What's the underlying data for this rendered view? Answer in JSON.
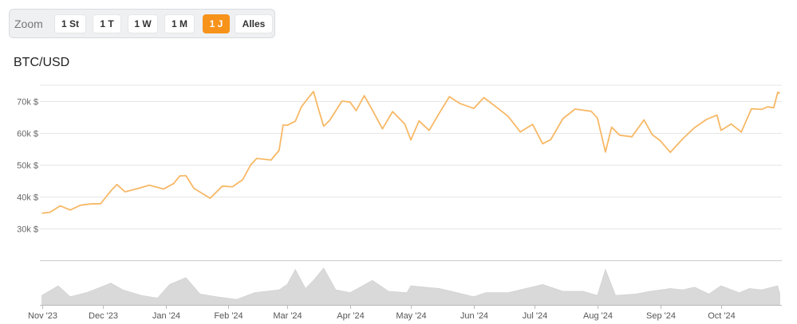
{
  "zoom": {
    "label": "Zoom",
    "buttons": [
      "1 St",
      "1 T",
      "1 W",
      "1 M",
      "1 J",
      "Alles"
    ],
    "active": "1 J"
  },
  "title": "BTC/USD",
  "colors": {
    "line": "#f7b866",
    "volume": "#d9d9d9",
    "grid": "#e6e6e6",
    "accent": "#f7931a"
  },
  "chart_data": {
    "type": "line",
    "title": "BTC/USD",
    "ylim": [
      20000,
      75000
    ],
    "y_ticks": [
      {
        "value": 30000,
        "label": "30k $"
      },
      {
        "value": 40000,
        "label": "40k $"
      },
      {
        "value": 50000,
        "label": "50k $"
      },
      {
        "value": 60000,
        "label": "60k $"
      },
      {
        "value": 70000,
        "label": "70k $"
      }
    ],
    "x_ticks": [
      {
        "date": "2023-11-01",
        "label": "Nov '23"
      },
      {
        "date": "2023-12-01",
        "label": "Dec '23"
      },
      {
        "date": "2024-01-01",
        "label": "Jan '24"
      },
      {
        "date": "2024-02-01",
        "label": "Feb '24"
      },
      {
        "date": "2024-03-01",
        "label": "Mar '24"
      },
      {
        "date": "2024-04-01",
        "label": "Apr '24"
      },
      {
        "date": "2024-05-01",
        "label": "May '24"
      },
      {
        "date": "2024-06-01",
        "label": "Jun '24"
      },
      {
        "date": "2024-07-01",
        "label": "Jul '24"
      },
      {
        "date": "2024-08-01",
        "label": "Aug '24"
      },
      {
        "date": "2024-09-01",
        "label": "Sep '24"
      },
      {
        "date": "2024-10-01",
        "label": "Oct '24"
      }
    ],
    "grid": true,
    "price": [
      [
        "2023-11-01",
        34800
      ],
      [
        "2023-11-05",
        35100
      ],
      [
        "2023-11-10",
        37100
      ],
      [
        "2023-11-15",
        35800
      ],
      [
        "2023-11-20",
        37300
      ],
      [
        "2023-11-25",
        37700
      ],
      [
        "2023-11-30",
        37800
      ],
      [
        "2023-12-05",
        41800
      ],
      [
        "2023-12-08",
        43800
      ],
      [
        "2023-12-12",
        41500
      ],
      [
        "2023-12-18",
        42500
      ],
      [
        "2023-12-24",
        43600
      ],
      [
        "2023-12-31",
        42400
      ],
      [
        "2024-01-05",
        44100
      ],
      [
        "2024-01-08",
        46500
      ],
      [
        "2024-01-11",
        46600
      ],
      [
        "2024-01-15",
        42600
      ],
      [
        "2024-01-23",
        39500
      ],
      [
        "2024-01-29",
        43300
      ],
      [
        "2024-02-03",
        43100
      ],
      [
        "2024-02-08",
        45300
      ],
      [
        "2024-02-12",
        50000
      ],
      [
        "2024-02-15",
        52000
      ],
      [
        "2024-02-22",
        51500
      ],
      [
        "2024-02-26",
        54500
      ],
      [
        "2024-02-28",
        62500
      ],
      [
        "2024-03-01",
        62400
      ],
      [
        "2024-03-05",
        63700
      ],
      [
        "2024-03-08",
        68200
      ],
      [
        "2024-03-12",
        71500
      ],
      [
        "2024-03-14",
        73000
      ],
      [
        "2024-03-16",
        68400
      ],
      [
        "2024-03-19",
        62100
      ],
      [
        "2024-03-22",
        64000
      ],
      [
        "2024-03-25",
        67000
      ],
      [
        "2024-03-28",
        70000
      ],
      [
        "2024-04-01",
        69700
      ],
      [
        "2024-04-04",
        67000
      ],
      [
        "2024-04-08",
        71700
      ],
      [
        "2024-04-12",
        67200
      ],
      [
        "2024-04-17",
        61300
      ],
      [
        "2024-04-22",
        66700
      ],
      [
        "2024-04-28",
        62800
      ],
      [
        "2024-05-01",
        57800
      ],
      [
        "2024-05-05",
        63800
      ],
      [
        "2024-05-10",
        60800
      ],
      [
        "2024-05-15",
        66200
      ],
      [
        "2024-05-20",
        71400
      ],
      [
        "2024-05-25",
        69300
      ],
      [
        "2024-06-01",
        67700
      ],
      [
        "2024-06-06",
        71100
      ],
      [
        "2024-06-12",
        68200
      ],
      [
        "2024-06-18",
        65200
      ],
      [
        "2024-06-24",
        60300
      ],
      [
        "2024-06-30",
        62700
      ],
      [
        "2024-07-05",
        56600
      ],
      [
        "2024-07-09",
        57900
      ],
      [
        "2024-07-15",
        64500
      ],
      [
        "2024-07-21",
        67500
      ],
      [
        "2024-07-29",
        66800
      ],
      [
        "2024-08-01",
        64700
      ],
      [
        "2024-08-05",
        54000
      ],
      [
        "2024-08-08",
        61800
      ],
      [
        "2024-08-12",
        59300
      ],
      [
        "2024-08-18",
        58800
      ],
      [
        "2024-08-24",
        64100
      ],
      [
        "2024-08-28",
        59500
      ],
      [
        "2024-09-01",
        57600
      ],
      [
        "2024-09-06",
        53900
      ],
      [
        "2024-09-12",
        58100
      ],
      [
        "2024-09-18",
        61700
      ],
      [
        "2024-09-24",
        64300
      ],
      [
        "2024-09-29",
        65600
      ],
      [
        "2024-10-01",
        60800
      ],
      [
        "2024-10-06",
        62800
      ],
      [
        "2024-10-11",
        60300
      ],
      [
        "2024-10-16",
        67600
      ],
      [
        "2024-10-21",
        67400
      ],
      [
        "2024-10-24",
        68200
      ],
      [
        "2024-10-27",
        67900
      ],
      [
        "2024-10-29",
        72800
      ],
      [
        "2024-10-30",
        72400
      ]
    ],
    "volume": [
      [
        "2023-11-01",
        0.35
      ],
      [
        "2023-11-09",
        0.7
      ],
      [
        "2023-11-15",
        0.3
      ],
      [
        "2023-11-23",
        0.45
      ],
      [
        "2023-12-05",
        0.8
      ],
      [
        "2023-12-11",
        0.55
      ],
      [
        "2023-12-20",
        0.35
      ],
      [
        "2023-12-28",
        0.25
      ],
      [
        "2024-01-03",
        0.75
      ],
      [
        "2024-01-11",
        1.0
      ],
      [
        "2024-01-18",
        0.4
      ],
      [
        "2024-01-26",
        0.3
      ],
      [
        "2024-02-05",
        0.2
      ],
      [
        "2024-02-14",
        0.45
      ],
      [
        "2024-02-26",
        0.55
      ],
      [
        "2024-03-01",
        0.75
      ],
      [
        "2024-03-05",
        1.3
      ],
      [
        "2024-03-10",
        0.6
      ],
      [
        "2024-03-14",
        0.9
      ],
      [
        "2024-03-19",
        1.35
      ],
      [
        "2024-03-25",
        0.55
      ],
      [
        "2024-04-01",
        0.45
      ],
      [
        "2024-04-12",
        0.9
      ],
      [
        "2024-04-20",
        0.5
      ],
      [
        "2024-04-29",
        0.45
      ],
      [
        "2024-05-01",
        0.7
      ],
      [
        "2024-05-15",
        0.6
      ],
      [
        "2024-05-21",
        0.5
      ],
      [
        "2024-06-01",
        0.3
      ],
      [
        "2024-06-07",
        0.45
      ],
      [
        "2024-06-18",
        0.45
      ],
      [
        "2024-06-24",
        0.55
      ],
      [
        "2024-07-05",
        0.75
      ],
      [
        "2024-07-15",
        0.5
      ],
      [
        "2024-07-25",
        0.5
      ],
      [
        "2024-08-01",
        0.35
      ],
      [
        "2024-08-05",
        1.3
      ],
      [
        "2024-08-10",
        0.35
      ],
      [
        "2024-08-20",
        0.4
      ],
      [
        "2024-08-27",
        0.5
      ],
      [
        "2024-09-06",
        0.6
      ],
      [
        "2024-09-12",
        0.55
      ],
      [
        "2024-09-18",
        0.65
      ],
      [
        "2024-09-25",
        0.4
      ],
      [
        "2024-10-01",
        0.7
      ],
      [
        "2024-10-10",
        0.45
      ],
      [
        "2024-10-15",
        0.6
      ],
      [
        "2024-10-21",
        0.55
      ],
      [
        "2024-10-29",
        0.7
      ],
      [
        "2024-10-30",
        0.4
      ]
    ]
  }
}
